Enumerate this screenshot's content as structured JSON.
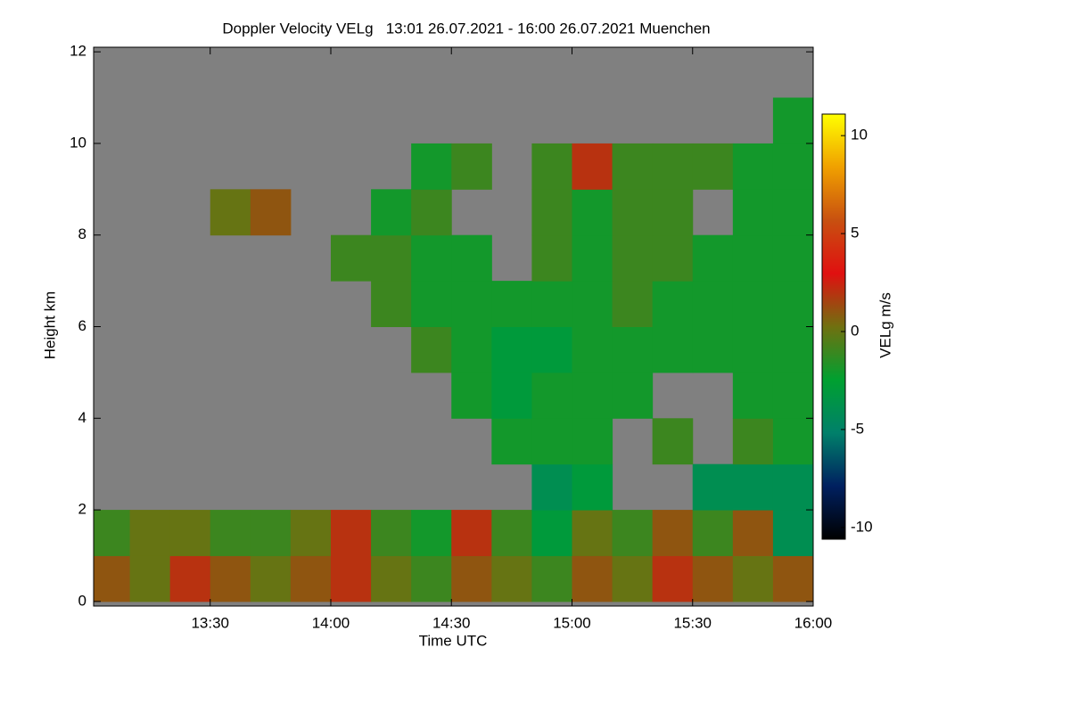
{
  "chart_data": {
    "type": "heatmap",
    "title": "Doppler Velocity VELg   13:01 26.07.2021 - 16:00 26.07.2021 Muenchen",
    "x_label": "Time UTC",
    "y_label": "Height km",
    "colorbar_label": "VELg m/s",
    "xlim": [
      13.0167,
      16.0
    ],
    "xticks": [
      {
        "value": 13.5,
        "label": "13:30"
      },
      {
        "value": 14.0,
        "label": "14:00"
      },
      {
        "value": 14.5,
        "label": "14:30"
      },
      {
        "value": 15.0,
        "label": "15:00"
      },
      {
        "value": 15.5,
        "label": "15:30"
      },
      {
        "value": 16.0,
        "label": "16:00"
      }
    ],
    "ylim": [
      -0.1,
      12.1
    ],
    "yticks": [
      0,
      2,
      4,
      6,
      8,
      10,
      12
    ],
    "zlim": [
      -10.6,
      11.1
    ],
    "zticks": [
      -10,
      -5,
      0,
      5,
      10
    ],
    "colorscale": [
      "#000000",
      "#002060",
      "#00806a",
      "#00a030",
      "#707010",
      "#e01010",
      "#c85010",
      "#f0a000",
      "#ffff00"
    ],
    "background": "#808080",
    "xbins": [
      13.0,
      13.1667,
      13.3333,
      13.5,
      13.6667,
      13.8333,
      14.0,
      14.1667,
      14.3333,
      14.5,
      14.6667,
      14.8333,
      15.0,
      15.1667,
      15.3333,
      15.5,
      15.6667,
      15.8333,
      16.0
    ],
    "ybins": [
      0,
      1,
      2,
      3,
      4,
      5,
      6,
      7,
      8,
      9,
      10,
      11,
      12
    ],
    "z": [
      [
        1,
        0,
        2,
        1,
        0,
        1,
        2,
        0,
        -1,
        1,
        0,
        -1,
        1,
        0,
        2,
        1,
        0,
        1
      ],
      [
        -1,
        0,
        0,
        -1,
        -1,
        0,
        2,
        -1,
        -2,
        2,
        -1,
        -3,
        0,
        -1,
        1,
        -1,
        1,
        -4
      ],
      [
        null,
        null,
        null,
        null,
        null,
        null,
        null,
        null,
        null,
        null,
        null,
        -4,
        -3,
        null,
        null,
        -4,
        -4,
        -4
      ],
      [
        null,
        null,
        null,
        null,
        null,
        null,
        null,
        null,
        null,
        null,
        -2,
        -2,
        -2,
        null,
        -1,
        null,
        -1,
        -2
      ],
      [
        null,
        null,
        null,
        null,
        null,
        null,
        null,
        null,
        null,
        -2,
        -3,
        -2,
        -2,
        -2,
        null,
        null,
        -2,
        -2
      ],
      [
        null,
        null,
        null,
        null,
        null,
        null,
        null,
        null,
        -1,
        -2,
        -3,
        -3,
        -2,
        -2,
        -2,
        -2,
        -2,
        -2
      ],
      [
        null,
        null,
        null,
        null,
        null,
        null,
        null,
        -1,
        -2,
        -2,
        -2,
        -2,
        -2,
        -1,
        -2,
        -2,
        -2,
        -2
      ],
      [
        null,
        null,
        null,
        null,
        null,
        null,
        -1,
        -1,
        -2,
        -2,
        null,
        -1,
        -2,
        -1,
        -1,
        -2,
        -2,
        -2
      ],
      [
        null,
        null,
        null,
        0,
        1,
        null,
        null,
        -2,
        -1,
        null,
        null,
        -1,
        -2,
        -1,
        -1,
        null,
        -2,
        -2
      ],
      [
        null,
        null,
        null,
        null,
        null,
        null,
        null,
        null,
        -2,
        -1,
        null,
        -1,
        2,
        -1,
        -1,
        -1,
        -2,
        -2
      ],
      [
        null,
        null,
        null,
        null,
        null,
        null,
        null,
        null,
        null,
        null,
        null,
        null,
        null,
        null,
        null,
        null,
        null,
        -2
      ],
      [
        null,
        null,
        null,
        null,
        null,
        null,
        null,
        null,
        null,
        null,
        null,
        null,
        null,
        null,
        null,
        null,
        null,
        null
      ]
    ]
  }
}
